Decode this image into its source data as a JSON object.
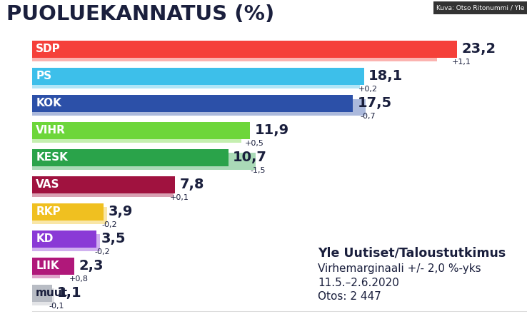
{
  "chart_data": {
    "type": "bar",
    "orientation": "horizontal",
    "title": "PUOLUEKANNATUS (%)",
    "credit": "Kuva: Otso Ritonummi / Yle",
    "categories": [
      "SDP",
      "PS",
      "KOK",
      "VIHR",
      "KESK",
      "VAS",
      "RKP",
      "KD",
      "LIIK",
      "muut"
    ],
    "values": [
      23.2,
      18.1,
      17.5,
      11.9,
      10.7,
      7.8,
      3.9,
      3.5,
      2.3,
      1.1
    ],
    "value_labels": [
      "23,2",
      "18,1",
      "17,5",
      "11,9",
      "10,7",
      "7,8",
      "3,9",
      "3,5",
      "2,3",
      "1,1"
    ],
    "previous_values": [
      22.1,
      17.9,
      18.2,
      11.4,
      12.2,
      7.7,
      4.1,
      3.7,
      1.5,
      1.2
    ],
    "changes": [
      1.1,
      0.2,
      -0.7,
      0.5,
      -1.5,
      0.1,
      -0.2,
      -0.2,
      0.8,
      -0.1
    ],
    "change_labels": [
      "+1,1",
      "+0,2",
      "-0,7",
      "+0,5",
      "-1,5",
      "+0,1",
      "-0,2",
      "-0,2",
      "+0,8",
      "-0,1"
    ],
    "colors": [
      "#f5403a",
      "#3dbfea",
      "#2c50a8",
      "#6dd63a",
      "#2aa34a",
      "#a0123f",
      "#f0c020",
      "#8a3ad6",
      "#b0187a",
      "#b8bcc4"
    ],
    "xlim": [
      0,
      27
    ],
    "xticks": [],
    "tick_labels": false,
    "data_labels": true,
    "annotations": [
      "Yle Uutiset/Taloustutkimus",
      "Virhemarginaali +/- 2,0 %-yks",
      "11.5.–2.6.2020",
      "Otos: 2 447"
    ]
  }
}
